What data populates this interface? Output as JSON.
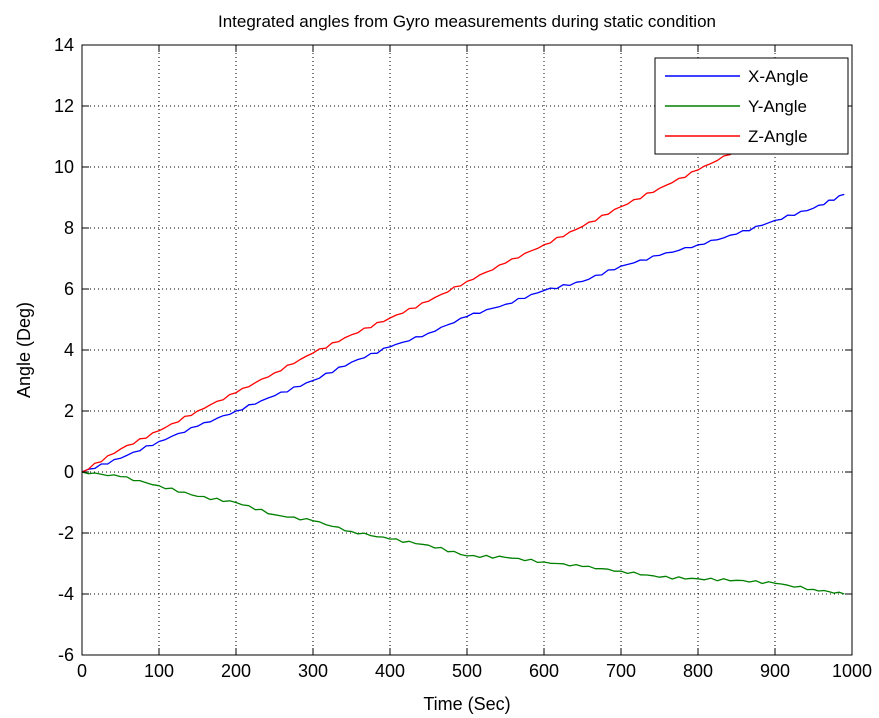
{
  "chart_data": {
    "type": "line",
    "title": "Integrated angles from Gyro measurements during static condition",
    "xlabel": "Time (Sec)",
    "ylabel": "Angle (Deg)",
    "xlim": [
      0,
      1000
    ],
    "ylim": [
      -6,
      14
    ],
    "xticks": [
      0,
      100,
      200,
      300,
      400,
      500,
      600,
      700,
      800,
      900,
      1000
    ],
    "yticks": [
      -6,
      -4,
      -2,
      0,
      2,
      4,
      6,
      8,
      10,
      12,
      14
    ],
    "grid": true,
    "grid_style": "dotted",
    "legend_position": "top-right",
    "series": [
      {
        "name": "X-Angle",
        "color": "#0000ff",
        "x": [
          0,
          50,
          100,
          150,
          200,
          250,
          300,
          350,
          400,
          450,
          500,
          550,
          600,
          650,
          700,
          750,
          800,
          850,
          900,
          950,
          990
        ],
        "y": [
          0,
          0.45,
          1.0,
          1.5,
          2.0,
          2.5,
          3.0,
          3.6,
          4.1,
          4.55,
          5.1,
          5.5,
          5.95,
          6.25,
          6.75,
          7.1,
          7.45,
          7.8,
          8.25,
          8.65,
          9.1
        ]
      },
      {
        "name": "Y-Angle",
        "color": "#008000",
        "x": [
          0,
          50,
          100,
          150,
          200,
          250,
          300,
          350,
          400,
          450,
          500,
          550,
          600,
          650,
          700,
          750,
          800,
          850,
          900,
          950,
          990
        ],
        "y": [
          0,
          -0.15,
          -0.45,
          -0.8,
          -1.0,
          -1.4,
          -1.6,
          -1.95,
          -2.2,
          -2.4,
          -2.75,
          -2.8,
          -2.95,
          -3.1,
          -3.25,
          -3.45,
          -3.5,
          -3.55,
          -3.65,
          -3.85,
          -4.0
        ]
      },
      {
        "name": "Z-Angle",
        "color": "#ff0000",
        "x": [
          0,
          50,
          100,
          150,
          200,
          250,
          300,
          350,
          400,
          450,
          500,
          550,
          600,
          650,
          700,
          750,
          800,
          850,
          900,
          950,
          990
        ],
        "y": [
          0,
          0.75,
          1.35,
          2.0,
          2.6,
          3.25,
          3.9,
          4.5,
          5.05,
          5.6,
          6.25,
          6.85,
          7.45,
          8.05,
          8.7,
          9.3,
          9.9,
          10.55,
          11.15,
          11.75,
          12.1
        ]
      }
    ]
  }
}
